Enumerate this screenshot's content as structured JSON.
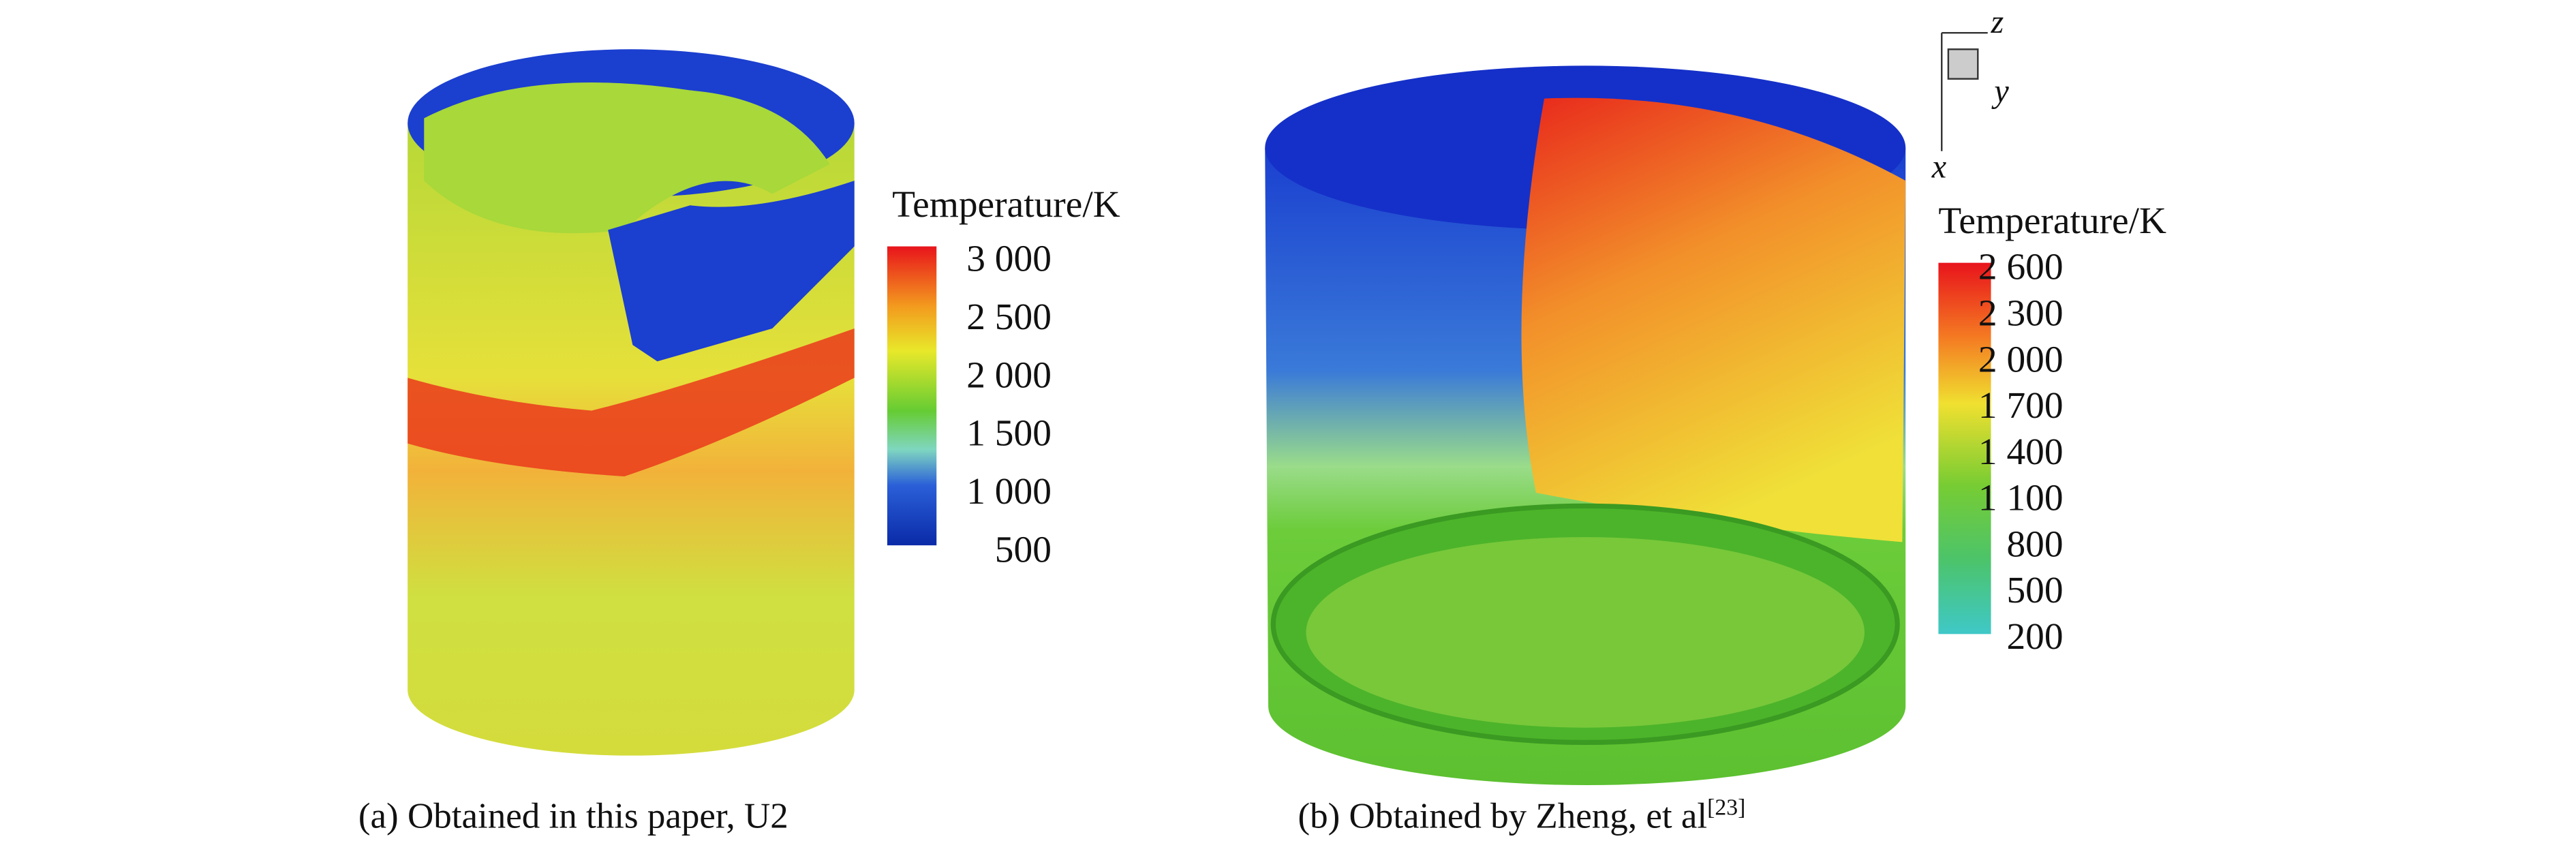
{
  "panels": [
    {
      "colorbar": {
        "title": "Temperature/K",
        "ticks": [
          "3 000",
          "2 500",
          "2 000",
          "1 500",
          "1 000",
          "500"
        ]
      },
      "caption": "(a) Obtained in this paper, U2"
    },
    {
      "colorbar": {
        "title": "Temperature/K",
        "ticks": [
          "2 600",
          "2 300",
          "2 000",
          "1 700",
          "1 400",
          "1 100",
          "800",
          "500",
          "200"
        ]
      },
      "caption": "(b) Obtained by Zheng, et al",
      "caption_ref": "[23]",
      "axes": {
        "x": "x",
        "y": "y",
        "z": "z"
      }
    }
  ]
}
